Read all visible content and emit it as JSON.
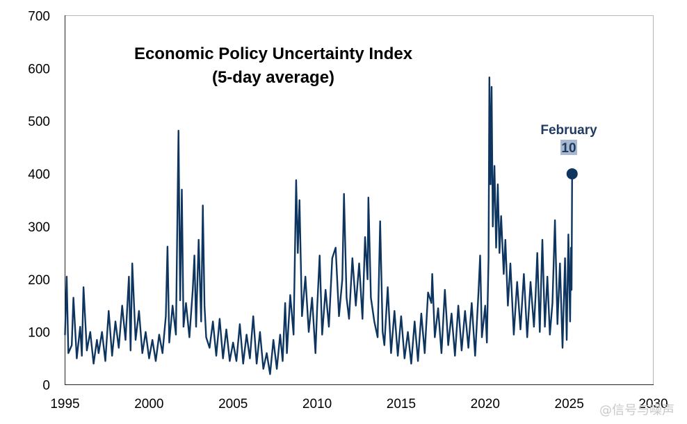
{
  "chart_data": {
    "type": "line",
    "title": "Economic Policy Uncertainty Index",
    "subtitle": "(5-day average)",
    "xlabel": "",
    "ylabel": "",
    "xlim": [
      1995,
      2030
    ],
    "ylim": [
      0,
      700
    ],
    "x_ticks": [
      "1995",
      "2000",
      "2005",
      "2010",
      "2015",
      "2020",
      "2025",
      "2030"
    ],
    "y_ticks": [
      "0",
      "100",
      "200",
      "300",
      "400",
      "500",
      "600",
      "700"
    ],
    "grid": false,
    "line_color": "#0d3560",
    "series": [
      {
        "values": [
          [
            1995.0,
            95
          ],
          [
            1995.1,
            205
          ],
          [
            1995.2,
            60
          ],
          [
            1995.4,
            75
          ],
          [
            1995.5,
            165
          ],
          [
            1995.7,
            50
          ],
          [
            1995.9,
            110
          ],
          [
            1996.0,
            55
          ],
          [
            1996.1,
            185
          ],
          [
            1996.3,
            65
          ],
          [
            1996.5,
            100
          ],
          [
            1996.7,
            40
          ],
          [
            1996.9,
            85
          ],
          [
            1997.0,
            60
          ],
          [
            1997.2,
            100
          ],
          [
            1997.4,
            45
          ],
          [
            1997.6,
            140
          ],
          [
            1997.8,
            55
          ],
          [
            1998.0,
            120
          ],
          [
            1998.2,
            70
          ],
          [
            1998.4,
            150
          ],
          [
            1998.6,
            85
          ],
          [
            1998.8,
            205
          ],
          [
            1998.9,
            65
          ],
          [
            1999.0,
            230
          ],
          [
            1999.2,
            85
          ],
          [
            1999.4,
            140
          ],
          [
            1999.6,
            60
          ],
          [
            1999.8,
            100
          ],
          [
            2000.0,
            50
          ],
          [
            2000.2,
            85
          ],
          [
            2000.4,
            45
          ],
          [
            2000.6,
            95
          ],
          [
            2000.8,
            60
          ],
          [
            2001.0,
            130
          ],
          [
            2001.1,
            262
          ],
          [
            2001.2,
            80
          ],
          [
            2001.4,
            150
          ],
          [
            2001.6,
            95
          ],
          [
            2001.75,
            482
          ],
          [
            2001.85,
            160
          ],
          [
            2001.95,
            370
          ],
          [
            2002.05,
            110
          ],
          [
            2002.2,
            155
          ],
          [
            2002.4,
            90
          ],
          [
            2002.6,
            180
          ],
          [
            2002.7,
            245
          ],
          [
            2002.8,
            110
          ],
          [
            2002.95,
            275
          ],
          [
            2003.1,
            120
          ],
          [
            2003.2,
            340
          ],
          [
            2003.3,
            150
          ],
          [
            2003.4,
            90
          ],
          [
            2003.6,
            70
          ],
          [
            2003.8,
            120
          ],
          [
            2004.0,
            55
          ],
          [
            2004.2,
            125
          ],
          [
            2004.4,
            50
          ],
          [
            2004.6,
            105
          ],
          [
            2004.8,
            45
          ],
          [
            2005.0,
            80
          ],
          [
            2005.2,
            45
          ],
          [
            2005.4,
            115
          ],
          [
            2005.6,
            40
          ],
          [
            2005.8,
            95
          ],
          [
            2006.0,
            50
          ],
          [
            2006.2,
            130
          ],
          [
            2006.4,
            40
          ],
          [
            2006.6,
            100
          ],
          [
            2006.8,
            30
          ],
          [
            2007.0,
            60
          ],
          [
            2007.2,
            20
          ],
          [
            2007.4,
            85
          ],
          [
            2007.6,
            30
          ],
          [
            2007.8,
            95
          ],
          [
            2007.95,
            45
          ],
          [
            2008.1,
            155
          ],
          [
            2008.2,
            60
          ],
          [
            2008.4,
            170
          ],
          [
            2008.6,
            95
          ],
          [
            2008.75,
            388
          ],
          [
            2008.85,
            250
          ],
          [
            2008.95,
            350
          ],
          [
            2009.1,
            130
          ],
          [
            2009.3,
            205
          ],
          [
            2009.5,
            100
          ],
          [
            2009.7,
            165
          ],
          [
            2009.9,
            60
          ],
          [
            2010.0,
            145
          ],
          [
            2010.15,
            245
          ],
          [
            2010.3,
            95
          ],
          [
            2010.5,
            180
          ],
          [
            2010.7,
            110
          ],
          [
            2010.9,
            240
          ],
          [
            2011.1,
            260
          ],
          [
            2011.3,
            130
          ],
          [
            2011.5,
            200
          ],
          [
            2011.6,
            362
          ],
          [
            2011.75,
            165
          ],
          [
            2011.9,
            125
          ],
          [
            2012.1,
            240
          ],
          [
            2012.3,
            150
          ],
          [
            2012.5,
            230
          ],
          [
            2012.7,
            125
          ],
          [
            2012.85,
            280
          ],
          [
            2013.0,
            200
          ],
          [
            2013.05,
            355
          ],
          [
            2013.2,
            165
          ],
          [
            2013.4,
            120
          ],
          [
            2013.6,
            90
          ],
          [
            2013.75,
            310
          ],
          [
            2013.9,
            100
          ],
          [
            2014.0,
            75
          ],
          [
            2014.2,
            185
          ],
          [
            2014.4,
            60
          ],
          [
            2014.6,
            140
          ],
          [
            2014.8,
            55
          ],
          [
            2015.0,
            130
          ],
          [
            2015.2,
            50
          ],
          [
            2015.4,
            100
          ],
          [
            2015.6,
            40
          ],
          [
            2015.8,
            120
          ],
          [
            2016.0,
            45
          ],
          [
            2016.2,
            135
          ],
          [
            2016.4,
            60
          ],
          [
            2016.6,
            175
          ],
          [
            2016.8,
            155
          ],
          [
            2016.85,
            210
          ],
          [
            2017.0,
            90
          ],
          [
            2017.2,
            145
          ],
          [
            2017.4,
            60
          ],
          [
            2017.6,
            180
          ],
          [
            2017.8,
            75
          ],
          [
            2018.0,
            135
          ],
          [
            2018.2,
            55
          ],
          [
            2018.4,
            150
          ],
          [
            2018.6,
            65
          ],
          [
            2018.8,
            140
          ],
          [
            2019.0,
            70
          ],
          [
            2019.2,
            155
          ],
          [
            2019.4,
            55
          ],
          [
            2019.6,
            175
          ],
          [
            2019.7,
            245
          ],
          [
            2019.8,
            90
          ],
          [
            2020.0,
            150
          ],
          [
            2020.1,
            80
          ],
          [
            2020.2,
            240
          ],
          [
            2020.25,
            583
          ],
          [
            2020.32,
            380
          ],
          [
            2020.38,
            565
          ],
          [
            2020.45,
            300
          ],
          [
            2020.55,
            415
          ],
          [
            2020.65,
            260
          ],
          [
            2020.75,
            380
          ],
          [
            2020.85,
            250
          ],
          [
            2020.95,
            320
          ],
          [
            2021.1,
            210
          ],
          [
            2021.2,
            275
          ],
          [
            2021.35,
            150
          ],
          [
            2021.5,
            230
          ],
          [
            2021.7,
            95
          ],
          [
            2021.9,
            195
          ],
          [
            2022.1,
            105
          ],
          [
            2022.3,
            210
          ],
          [
            2022.5,
            90
          ],
          [
            2022.7,
            195
          ],
          [
            2022.9,
            110
          ],
          [
            2023.0,
            170
          ],
          [
            2023.1,
            250
          ],
          [
            2023.25,
            100
          ],
          [
            2023.4,
            275
          ],
          [
            2023.55,
            110
          ],
          [
            2023.7,
            205
          ],
          [
            2023.85,
            95
          ],
          [
            2024.0,
            155
          ],
          [
            2024.15,
            312
          ],
          [
            2024.3,
            115
          ],
          [
            2024.45,
            230
          ],
          [
            2024.6,
            70
          ],
          [
            2024.75,
            240
          ],
          [
            2024.85,
            85
          ],
          [
            2024.95,
            285
          ],
          [
            2025.05,
            120
          ],
          [
            2025.1,
            260
          ],
          [
            2025.14,
            180
          ],
          [
            2025.17,
            400
          ]
        ]
      }
    ],
    "annotation": {
      "label": "February",
      "day": "10",
      "x": 2025.17,
      "y": 400
    }
  },
  "watermark": "@信号与噪声"
}
